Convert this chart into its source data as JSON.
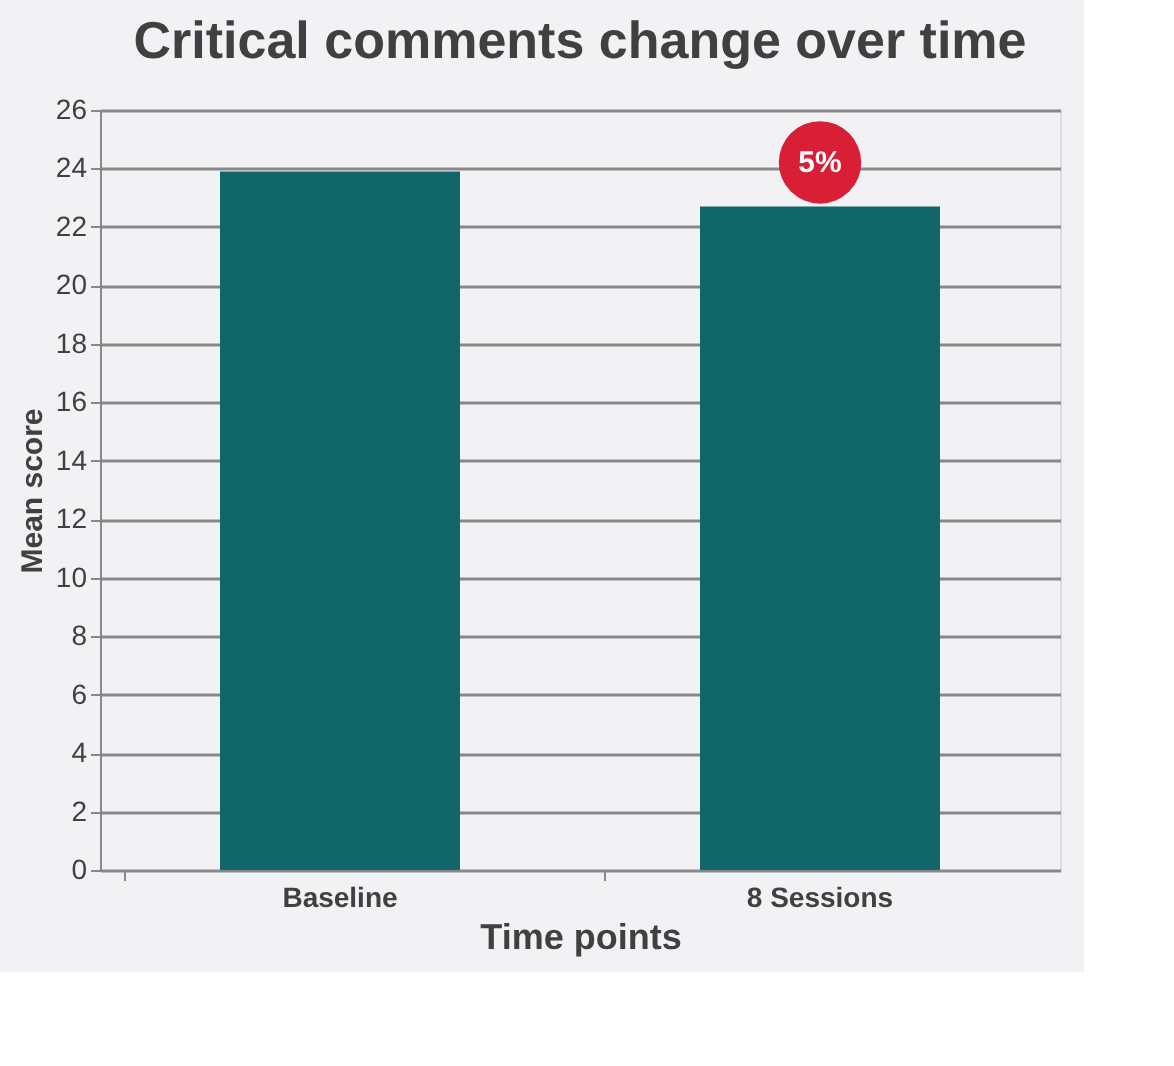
{
  "chart_data": {
    "type": "bar",
    "title": "Critical comments change over time",
    "xlabel": "Time points",
    "ylabel": "Mean score",
    "categories": [
      "Baseline",
      "8 Sessions"
    ],
    "values": [
      23.9,
      22.7
    ],
    "color": "#11666a",
    "ylim": [
      0,
      26
    ],
    "yticks": [
      0,
      2,
      4,
      6,
      8,
      10,
      12,
      14,
      16,
      18,
      20,
      22,
      24,
      26
    ],
    "grid": "y",
    "annotations": [
      "5%"
    ]
  }
}
